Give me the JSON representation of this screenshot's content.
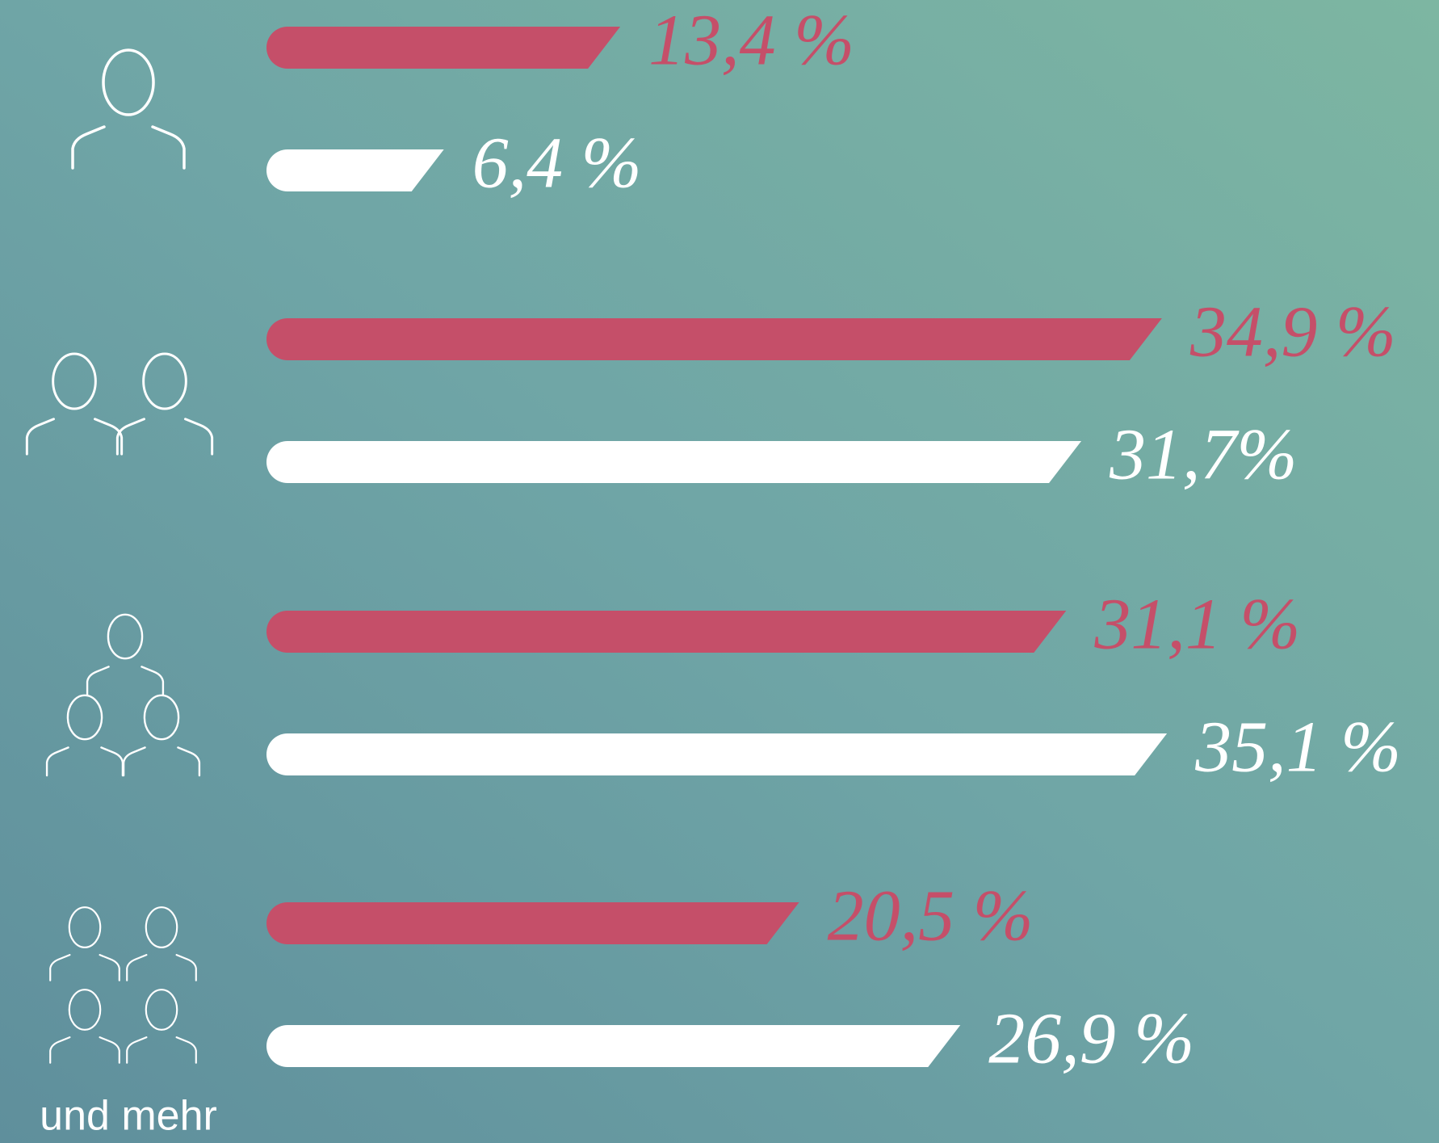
{
  "chart_data": {
    "type": "bar",
    "categories": [
      null,
      null,
      null,
      "und mehr"
    ],
    "series": [
      {
        "color": "#c54f69",
        "values": [
          13.4,
          34.9,
          31.1,
          20.5
        ],
        "value_labels": [
          "13,4 %",
          "34,9 %",
          "31,1 %",
          "20,5 %"
        ]
      },
      {
        "color": "#ffffff",
        "values": [
          6.4,
          31.7,
          35.1,
          26.9
        ],
        "value_labels": [
          "6,4 %",
          "31,7%",
          "35,1 %",
          "26,9 %"
        ]
      }
    ]
  }
}
